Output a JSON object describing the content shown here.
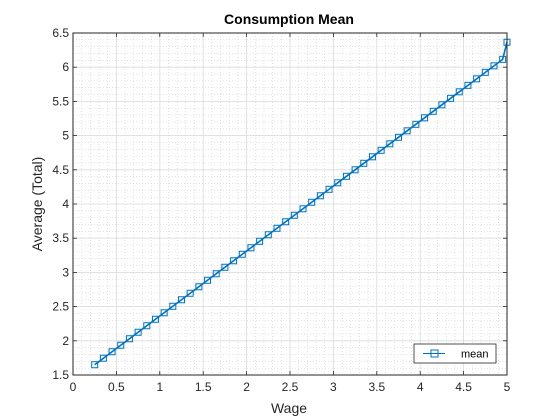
{
  "chart_data": {
    "type": "line",
    "title": "Consumption Mean",
    "xlabel": "Wage",
    "ylabel": "Average (Total)",
    "xlim": [
      0,
      5
    ],
    "ylim": [
      1.5,
      6.5
    ],
    "xticks": [
      0,
      0.5,
      1,
      1.5,
      2,
      2.5,
      3,
      3.5,
      4,
      4.5,
      5
    ],
    "xtick_labels": [
      "0",
      "0.5",
      "1",
      "1.5",
      "2",
      "2.5",
      "3",
      "3.5",
      "4",
      "4.5",
      "5"
    ],
    "yticks": [
      1.5,
      2,
      2.5,
      3,
      3.5,
      4,
      4.5,
      5,
      5.5,
      6,
      6.5
    ],
    "ytick_labels": [
      "1.5",
      "2",
      "2.5",
      "3",
      "3.5",
      "4",
      "4.5",
      "5",
      "5.5",
      "6",
      "6.5"
    ],
    "grid": true,
    "minor_grid": true,
    "legend_position": "bottom-right",
    "series": [
      {
        "name": "mean",
        "color": "#0072bd",
        "marker": "square",
        "x": [
          0.25,
          0.35,
          0.45,
          0.55,
          0.65,
          0.75,
          0.85,
          0.95,
          1.05,
          1.15,
          1.25,
          1.35,
          1.45,
          1.55,
          1.65,
          1.75,
          1.85,
          1.95,
          2.05,
          2.15,
          2.25,
          2.35,
          2.45,
          2.55,
          2.65,
          2.75,
          2.85,
          2.95,
          3.05,
          3.15,
          3.25,
          3.35,
          3.45,
          3.55,
          3.65,
          3.75,
          3.85,
          3.95,
          4.05,
          4.15,
          4.25,
          4.35,
          4.45,
          4.55,
          4.65,
          4.75,
          4.85,
          4.95,
          5.0
        ],
        "y": [
          1.65,
          1.745,
          1.84,
          1.935,
          2.03,
          2.125,
          2.22,
          2.315,
          2.41,
          2.505,
          2.6,
          2.695,
          2.79,
          2.885,
          2.98,
          3.075,
          3.17,
          3.265,
          3.36,
          3.455,
          3.55,
          3.645,
          3.74,
          3.835,
          3.93,
          4.025,
          4.12,
          4.215,
          4.31,
          4.405,
          4.5,
          4.595,
          4.69,
          4.785,
          4.88,
          4.975,
          5.07,
          5.165,
          5.26,
          5.355,
          5.45,
          5.545,
          5.64,
          5.735,
          5.83,
          5.925,
          6.02,
          6.115,
          6.365
        ]
      }
    ]
  }
}
